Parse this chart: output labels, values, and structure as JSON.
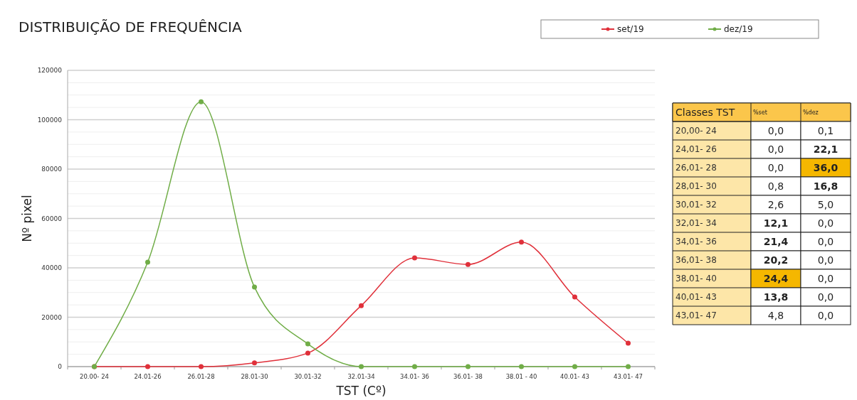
{
  "chart_data": [
    {
      "type": "line",
      "title": "DISTRIBUIÇÃO DE FREQUÊNCIA",
      "xlabel": "TST (Cº)",
      "ylabel": "Nº pixel",
      "categories": [
        "20.00- 24",
        "24.01-26",
        "26.01-28",
        "28.01-30",
        "30.01-32",
        "32.01-34",
        "34.01- 36",
        "36.01- 38",
        "38.01 - 40",
        "40.01- 43",
        "43.01- 47"
      ],
      "series": [
        {
          "name": "set/19",
          "color": "#e0303a",
          "values": [
            0,
            0,
            0,
            1500,
            5500,
            24700,
            44000,
            41400,
            50400,
            28200,
            9500
          ]
        },
        {
          "name": "dez/19",
          "color": "#70ad47",
          "values": [
            0,
            42300,
            107300,
            32200,
            9200,
            0,
            0,
            0,
            0,
            0,
            0
          ]
        }
      ],
      "ylim": [
        0,
        120000
      ],
      "yticks": [
        0,
        {
          "value": 5000,
          "label": null
        },
        {
          "value": 10000,
          "label": null
        },
        {
          "value": 15000,
          "label": null
        },
        20000,
        {
          "value": 25000,
          "label": null
        },
        {
          "value": 30000,
          "label": null
        },
        {
          "value": 35000,
          "label": null
        },
        40000,
        {
          "value": 45000,
          "label": null
        },
        {
          "value": 50000,
          "label": null
        },
        {
          "value": 55000,
          "label": null
        },
        60000,
        {
          "value": 65000,
          "label": null
        },
        {
          "value": 70000,
          "label": null
        },
        {
          "value": 75000,
          "label": null
        },
        80000,
        {
          "value": 85000,
          "label": null
        },
        {
          "value": 90000,
          "label": null
        },
        {
          "value": 95000,
          "label": null
        },
        100000,
        {
          "value": 105000,
          "label": null
        },
        {
          "value": 110000,
          "label": null
        },
        {
          "value": 115000,
          "label": null
        },
        120000
      ],
      "grid": "y",
      "legend": "top right",
      "marker": "circle",
      "line_style": "solid"
    },
    {
      "type": "heatmap",
      "ylabel": "Classes TST",
      "categories": [
        "%set",
        "%dez"
      ],
      "y_categories": [
        "20,00- 24",
        "24,01- 26",
        "26,01- 28",
        "28,01- 30",
        "30,01- 32",
        "32,01- 34",
        "34,01- 36",
        "36,01- 38",
        "38,01- 40",
        "40,01- 43",
        "43,01- 47"
      ],
      "cells": [
        [
          0.0,
          0.1
        ],
        [
          0.0,
          22.1
        ],
        [
          0.0,
          36.0
        ],
        [
          0.8,
          16.8
        ],
        [
          2.6,
          5.0
        ],
        [
          12.1,
          0.0
        ],
        [
          21.4,
          0.0
        ],
        [
          20.2,
          0.0
        ],
        [
          24.4,
          0.0
        ],
        [
          13.8,
          0.0
        ],
        [
          4.8,
          0.0
        ]
      ],
      "cell_labels": [
        [
          "0,0",
          "0,1"
        ],
        [
          "0,0",
          "22,1"
        ],
        [
          "0,0",
          "36,0"
        ],
        [
          "0,8",
          "16,8"
        ],
        [
          "2,6",
          "5,0"
        ],
        [
          "12,1",
          "0,0"
        ],
        [
          "21,4",
          "0,0"
        ],
        [
          "20,2",
          "0,0"
        ],
        [
          "24,4",
          "0,0"
        ],
        [
          "13,8",
          "0,0"
        ],
        [
          "4,8",
          "0,0"
        ]
      ]
    }
  ]
}
